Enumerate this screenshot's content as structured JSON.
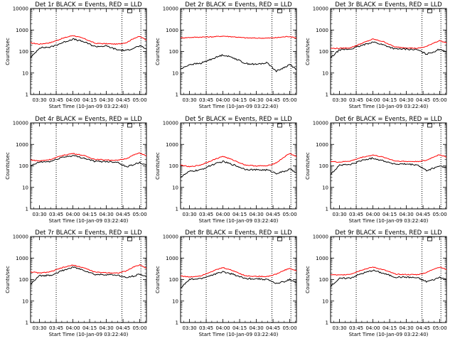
{
  "chart_data": [
    {
      "type": "line",
      "title": "Det 1r BLACK = Events, RED = LLD",
      "xlabel": "Start Time (10-Jan-09 03:22:40)",
      "ylabel": "Counts/sec",
      "yscale": "log",
      "ylim": [
        1,
        10000
      ],
      "xlim": [
        "03:22",
        "05:06"
      ],
      "x_ticks": [
        "03:30",
        "03:45",
        "04:00",
        "04:15",
        "04:30",
        "04:45",
        "05:00"
      ],
      "y_ticks": [
        "1",
        "10",
        "100",
        "1000",
        "10000"
      ],
      "x": [
        "03:22",
        "03:30",
        "03:40",
        "03:50",
        "04:00",
        "04:10",
        "04:20",
        "04:30",
        "04:40",
        "04:48",
        "04:55",
        "05:00",
        "05:06"
      ],
      "series": [
        {
          "color": "#ff0000",
          "values": [
            250,
            220,
            260,
            400,
            560,
            400,
            240,
            230,
            220,
            260,
            420,
            500,
            340
          ]
        },
        {
          "color": "#000000",
          "values": [
            50,
            150,
            160,
            250,
            380,
            280,
            170,
            180,
            120,
            110,
            150,
            180,
            130
          ]
        }
      ]
    },
    {
      "type": "line",
      "title": "Det 2r BLACK = Events, RED = LLD",
      "xlabel": "Start Time (10-Jan-09 03:22:40)",
      "ylabel": "Counts/sec",
      "yscale": "log",
      "ylim": [
        1,
        10000
      ],
      "xlim": [
        "03:22",
        "05:06"
      ],
      "x_ticks": [
        "03:30",
        "03:45",
        "04:00",
        "04:15",
        "04:30",
        "04:45",
        "05:00"
      ],
      "y_ticks": [
        "1",
        "10",
        "100",
        "1000",
        "10000"
      ],
      "x": [
        "03:22",
        "03:30",
        "03:40",
        "03:50",
        "04:00",
        "04:10",
        "04:20",
        "04:30",
        "04:40",
        "04:48",
        "04:55",
        "05:00",
        "05:06"
      ],
      "series": [
        {
          "color": "#ff0000",
          "values": [
            430,
            450,
            470,
            480,
            520,
            480,
            430,
            420,
            420,
            440,
            480,
            500,
            420
          ]
        },
        {
          "color": "#000000",
          "values": [
            15,
            25,
            28,
            45,
            70,
            50,
            28,
            25,
            30,
            12,
            18,
            25,
            15
          ]
        }
      ]
    },
    {
      "type": "line",
      "title": "Det 3r BLACK = Events, RED = LLD",
      "xlabel": "Start Time (10-Jan-09 03:22:40)",
      "ylabel": "Counts/sec",
      "yscale": "log",
      "ylim": [
        1,
        10000
      ],
      "xlim": [
        "03:22",
        "05:06"
      ],
      "x_ticks": [
        "03:30",
        "03:45",
        "04:00",
        "04:15",
        "04:30",
        "04:45",
        "05:00"
      ],
      "y_ticks": [
        "1",
        "10",
        "100",
        "1000",
        "10000"
      ],
      "x": [
        "03:22",
        "03:30",
        "03:40",
        "03:50",
        "04:00",
        "04:10",
        "04:20",
        "04:30",
        "04:40",
        "04:48",
        "04:55",
        "05:00",
        "05:06"
      ],
      "series": [
        {
          "color": "#ff0000",
          "values": [
            140,
            140,
            150,
            240,
            380,
            280,
            160,
            150,
            140,
            170,
            260,
            320,
            250
          ]
        },
        {
          "color": "#000000",
          "values": [
            50,
            120,
            130,
            190,
            280,
            200,
            130,
            130,
            120,
            75,
            100,
            130,
            100
          ]
        }
      ]
    },
    {
      "type": "line",
      "title": "Det 4r BLACK = Events, RED = LLD",
      "xlabel": "Start Time (10-Jan-09 03:22:40)",
      "ylabel": "Counts/sec",
      "yscale": "log",
      "ylim": [
        1,
        10000
      ],
      "xlim": [
        "03:22",
        "05:06"
      ],
      "x_ticks": [
        "03:30",
        "03:45",
        "04:00",
        "04:15",
        "04:30",
        "04:45",
        "05:00"
      ],
      "y_ticks": [
        "1",
        "10",
        "100",
        "1000",
        "10000"
      ],
      "x": [
        "03:22",
        "03:30",
        "03:40",
        "03:50",
        "04:00",
        "04:10",
        "04:20",
        "04:30",
        "04:40",
        "04:48",
        "04:55",
        "05:00",
        "05:06"
      ],
      "series": [
        {
          "color": "#ff0000",
          "values": [
            190,
            170,
            200,
            300,
            380,
            300,
            200,
            190,
            180,
            220,
            330,
            400,
            290
          ]
        },
        {
          "color": "#000000",
          "values": [
            100,
            150,
            160,
            250,
            300,
            230,
            160,
            160,
            150,
            90,
            120,
            140,
            110
          ]
        }
      ]
    },
    {
      "type": "line",
      "title": "Det 5r BLACK = Events, RED = LLD",
      "xlabel": "Start Time (10-Jan-09 03:22:40)",
      "ylabel": "Counts/sec",
      "yscale": "log",
      "ylim": [
        1,
        10000
      ],
      "xlim": [
        "03:22",
        "05:06"
      ],
      "x_ticks": [
        "03:30",
        "03:45",
        "04:00",
        "04:15",
        "04:30",
        "04:45",
        "05:00"
      ],
      "y_ticks": [
        "1",
        "10",
        "100",
        "1000",
        "10000"
      ],
      "x": [
        "03:22",
        "03:30",
        "03:40",
        "03:50",
        "04:00",
        "04:10",
        "04:20",
        "04:30",
        "04:40",
        "04:48",
        "04:55",
        "05:00",
        "05:06"
      ],
      "series": [
        {
          "color": "#ff0000",
          "values": [
            110,
            90,
            110,
            180,
            280,
            180,
            110,
            100,
            100,
            140,
            260,
            380,
            270
          ]
        },
        {
          "color": "#000000",
          "values": [
            30,
            55,
            65,
            110,
            160,
            110,
            70,
            65,
            65,
            45,
            55,
            70,
            50
          ]
        }
      ]
    },
    {
      "type": "line",
      "title": "Det 6r BLACK = Events, RED = LLD",
      "xlabel": "Start Time (10-Jan-09 03:22:40)",
      "ylabel": "Counts/sec",
      "yscale": "log",
      "ylim": [
        1,
        10000
      ],
      "xlim": [
        "03:22",
        "05:06"
      ],
      "x_ticks": [
        "03:30",
        "03:45",
        "04:00",
        "04:15",
        "04:30",
        "04:45",
        "05:00"
      ],
      "y_ticks": [
        "1",
        "10",
        "100",
        "1000",
        "10000"
      ],
      "x": [
        "03:22",
        "03:30",
        "03:40",
        "03:50",
        "04:00",
        "04:10",
        "04:20",
        "04:30",
        "04:40",
        "04:48",
        "04:55",
        "05:00",
        "05:06"
      ],
      "series": [
        {
          "color": "#ff0000",
          "values": [
            160,
            150,
            170,
            250,
            320,
            250,
            170,
            160,
            160,
            180,
            270,
            330,
            260
          ]
        },
        {
          "color": "#000000",
          "values": [
            40,
            110,
            115,
            180,
            230,
            170,
            120,
            120,
            110,
            60,
            80,
            100,
            80
          ]
        }
      ]
    },
    {
      "type": "line",
      "title": "Det 7r BLACK = Events, RED = LLD",
      "xlabel": "Start Time (10-Jan-09 03:22:40)",
      "ylabel": "Counts/sec",
      "yscale": "log",
      "ylim": [
        1,
        10000
      ],
      "xlim": [
        "03:22",
        "05:06"
      ],
      "x_ticks": [
        "03:30",
        "03:45",
        "04:00",
        "04:15",
        "04:30",
        "04:45",
        "05:00"
      ],
      "y_ticks": [
        "1",
        "10",
        "100",
        "1000",
        "10000"
      ],
      "x": [
        "03:22",
        "03:30",
        "03:40",
        "03:50",
        "04:00",
        "04:10",
        "04:20",
        "04:30",
        "04:40",
        "04:48",
        "04:55",
        "05:00",
        "05:06"
      ],
      "series": [
        {
          "color": "#ff0000",
          "values": [
            230,
            200,
            230,
            350,
            470,
            350,
            220,
            210,
            200,
            250,
            400,
            480,
            340
          ]
        },
        {
          "color": "#000000",
          "values": [
            60,
            150,
            160,
            250,
            380,
            270,
            170,
            170,
            160,
            120,
            150,
            180,
            130
          ]
        }
      ]
    },
    {
      "type": "line",
      "title": "Det 8r BLACK = Events, RED = LLD",
      "xlabel": "Start Time (10-Jan-09 03:22:40)",
      "ylabel": "Counts/sec",
      "yscale": "log",
      "ylim": [
        1,
        10000
      ],
      "xlim": [
        "03:22",
        "05:06"
      ],
      "x_ticks": [
        "03:30",
        "03:45",
        "04:00",
        "04:15",
        "04:30",
        "04:45",
        "05:00"
      ],
      "y_ticks": [
        "1",
        "10",
        "100",
        "1000",
        "10000"
      ],
      "x": [
        "03:22",
        "03:30",
        "03:40",
        "03:50",
        "04:00",
        "04:10",
        "04:20",
        "04:30",
        "04:40",
        "04:48",
        "04:55",
        "05:00",
        "05:06"
      ],
      "series": [
        {
          "color": "#ff0000",
          "values": [
            150,
            130,
            150,
            240,
            360,
            250,
            150,
            140,
            140,
            180,
            270,
            330,
            250
          ]
        },
        {
          "color": "#000000",
          "values": [
            40,
            100,
            110,
            160,
            230,
            170,
            110,
            110,
            100,
            65,
            80,
            100,
            75
          ]
        }
      ]
    },
    {
      "type": "line",
      "title": "Det 9r BLACK = Events, RED = LLD",
      "xlabel": "Start Time (10-Jan-09 03:22:40)",
      "ylabel": "Counts/sec",
      "yscale": "log",
      "ylim": [
        1,
        10000
      ],
      "xlim": [
        "03:22",
        "05:06"
      ],
      "x_ticks": [
        "03:30",
        "03:45",
        "04:00",
        "04:15",
        "04:30",
        "04:45",
        "05:00"
      ],
      "y_ticks": [
        "1",
        "10",
        "100",
        "1000",
        "10000"
      ],
      "x": [
        "03:22",
        "03:30",
        "03:40",
        "03:50",
        "04:00",
        "04:10",
        "04:20",
        "04:30",
        "04:40",
        "04:48",
        "04:55",
        "05:00",
        "05:06"
      ],
      "series": [
        {
          "color": "#ff0000",
          "values": [
            170,
            160,
            180,
            280,
            380,
            280,
            180,
            170,
            170,
            210,
            320,
            380,
            290
          ]
        },
        {
          "color": "#000000",
          "values": [
            50,
            110,
            120,
            190,
            270,
            190,
            130,
            130,
            120,
            80,
            100,
            130,
            100
          ]
        }
      ]
    }
  ]
}
